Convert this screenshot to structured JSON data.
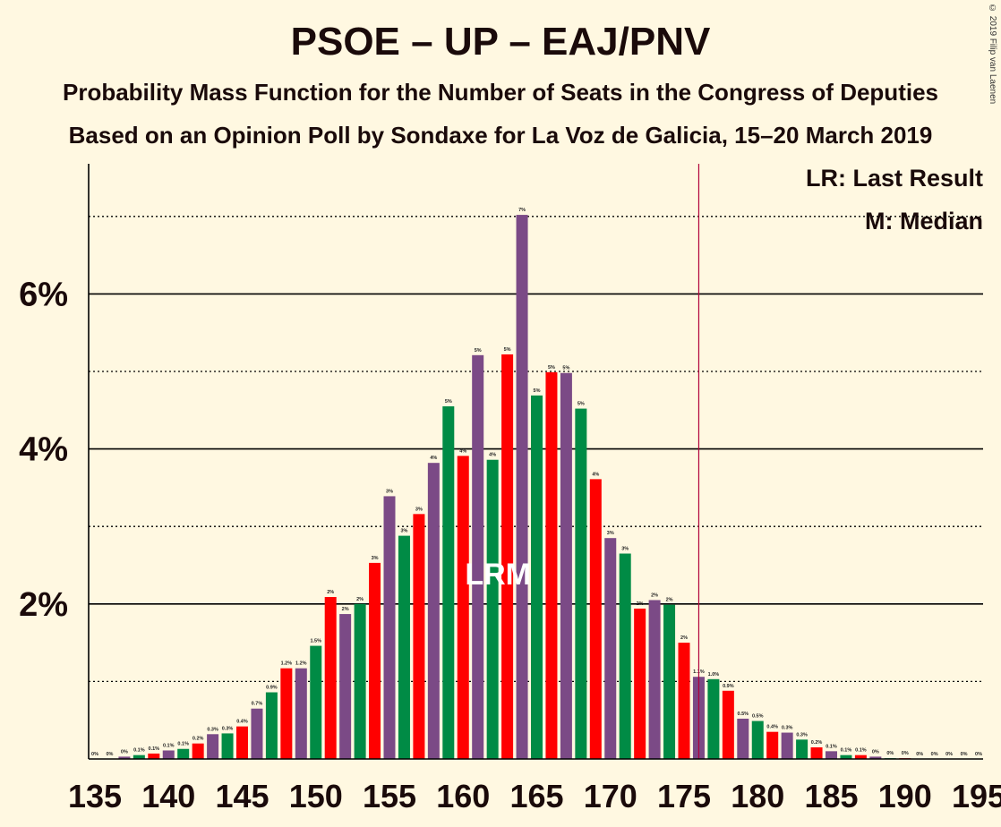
{
  "title": "PSOE – UP – EAJ/PNV",
  "subtitle": "Probability Mass Function for the Number of Seats in the Congress of Deputies",
  "subtitle2": "Based on an Opinion Poll by Sondaxe for La Voz de Galicia, 15–20 March 2019",
  "copyright": "© 2019 Filip van Laenen",
  "legend": {
    "lr": "LR: Last Result",
    "m": "M: Median"
  },
  "colors": {
    "background": "#FFF8E1",
    "green": "#008B45",
    "red": "#FF0000",
    "purple": "#7B4A86",
    "last_result_line": "#B0003A"
  },
  "chart_data": {
    "type": "bar",
    "x_min": 135,
    "x_max": 195,
    "xticks": [
      135,
      140,
      145,
      150,
      155,
      160,
      165,
      170,
      175,
      180,
      185,
      190,
      195
    ],
    "ylim": [
      0,
      7.6
    ],
    "yticks": [
      {
        "value": 2,
        "label": "2%"
      },
      {
        "value": 4,
        "label": "4%"
      },
      {
        "value": 6,
        "label": "6%"
      }
    ],
    "last_result": 176,
    "median": 163,
    "marker_label": "LRM",
    "color_cycle": [
      "green",
      "red",
      "purple"
    ],
    "x": [
      135,
      136,
      137,
      138,
      139,
      140,
      141,
      142,
      143,
      144,
      145,
      146,
      147,
      148,
      149,
      150,
      151,
      152,
      153,
      154,
      155,
      156,
      157,
      158,
      159,
      160,
      161,
      162,
      163,
      164,
      165,
      166,
      167,
      168,
      169,
      170,
      171,
      172,
      173,
      174,
      175,
      176,
      177,
      178,
      179,
      180,
      181,
      182,
      183,
      184,
      185,
      186,
      187,
      188,
      189,
      190,
      191,
      192,
      193,
      194,
      195
    ],
    "values": [
      0,
      0,
      0.03,
      0.05,
      0.07,
      0.11,
      0.13,
      0.2,
      0.32,
      0.33,
      0.42,
      0.65,
      0.86,
      1.17,
      1.17,
      1.46,
      2.09,
      1.87,
      2.0,
      2.53,
      3.39,
      2.88,
      3.16,
      3.82,
      4.55,
      3.91,
      5.21,
      3.86,
      5.22,
      7.02,
      4.69,
      4.99,
      4.98,
      4.52,
      3.61,
      2.85,
      2.65,
      1.94,
      2.05,
      1.99,
      1.5,
      1.06,
      1.03,
      0.88,
      0.52,
      0.49,
      0.35,
      0.34,
      0.25,
      0.15,
      0.1,
      0.05,
      0.05,
      0.03,
      0.01,
      0.01,
      0,
      0,
      0,
      0,
      0
    ],
    "labels": [
      "0%",
      "0%",
      "0%",
      "0.1%",
      "0.1%",
      "0.1%",
      "0.1%",
      "0.2%",
      "0.3%",
      "0.3%",
      "0.4%",
      "0.7%",
      "0.9%",
      "1.2%",
      "1.2%",
      "1.5%",
      "2%",
      "2%",
      "2%",
      "3%",
      "3%",
      "3%",
      "3%",
      "4%",
      "5%",
      "4%",
      "5%",
      "4%",
      "5%",
      "7%",
      "5%",
      "5%",
      "5%",
      "5%",
      "4%",
      "3%",
      "3%",
      "2%",
      "2%",
      "2%",
      "2%",
      "1.1%",
      "1.0%",
      "0.9%",
      "0.5%",
      "0.5%",
      "0.4%",
      "0.3%",
      "0.3%",
      "0.2%",
      "0.1%",
      "0.1%",
      "0.1%",
      "0%",
      "0%",
      "0%",
      "0%",
      "0%",
      "0%",
      "0%",
      "0%"
    ]
  }
}
